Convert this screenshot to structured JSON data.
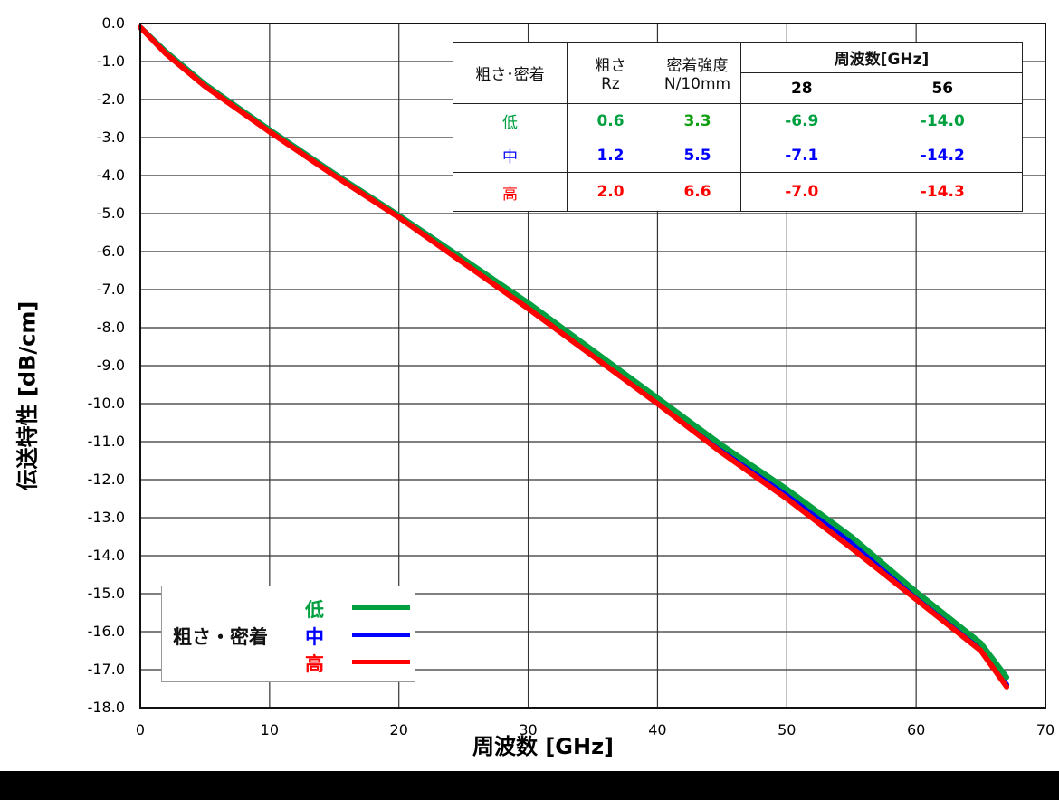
{
  "chart_data": {
    "type": "line",
    "title": "",
    "xlabel": "周波数 [GHz]",
    "ylabel": "伝送特性 [dB/cm]",
    "xlim": [
      0,
      70
    ],
    "ylim": [
      -18.0,
      0.0
    ],
    "x_ticks": [
      "0",
      "10",
      "20",
      "30",
      "40",
      "50",
      "60",
      "70"
    ],
    "y_ticks": [
      "0.0",
      "-1.0",
      "-2.0",
      "-3.0",
      "-4.0",
      "-5.0",
      "-6.0",
      "-7.0",
      "-8.0",
      "-9.0",
      "-10.0",
      "-11.0",
      "-12.0",
      "-13.0",
      "-14.0",
      "-15.0",
      "-16.0",
      "-17.0",
      "-18.0"
    ],
    "grid": true,
    "legend_position": "lower-left",
    "x": [
      0,
      2,
      5,
      10,
      15,
      20,
      25,
      30,
      35,
      40,
      45,
      50,
      55,
      60,
      65,
      67
    ],
    "series": [
      {
        "name": "低",
        "color": "#00A040",
        "values": [
          -0.1,
          -0.75,
          -1.6,
          -2.8,
          -3.95,
          -5.05,
          -6.2,
          -7.35,
          -8.6,
          -9.85,
          -11.1,
          -12.25,
          -13.5,
          -14.95,
          -16.3,
          -17.2
        ]
      },
      {
        "name": "中",
        "color": "#0000FF",
        "values": [
          -0.1,
          -0.75,
          -1.6,
          -2.8,
          -3.95,
          -5.05,
          -6.2,
          -7.4,
          -8.65,
          -9.9,
          -11.2,
          -12.4,
          -13.65,
          -15.1,
          -16.45,
          -17.4
        ]
      },
      {
        "name": "高",
        "color": "#FF0000",
        "values": [
          -0.1,
          -0.8,
          -1.65,
          -2.85,
          -4.0,
          -5.1,
          -6.3,
          -7.5,
          -8.75,
          -10.0,
          -11.3,
          -12.5,
          -13.8,
          -15.15,
          -16.5,
          -17.45
        ]
      }
    ],
    "table": {
      "headers": [
        "粗さ･密着",
        "粗さ Rz",
        "密着強度 N/10mm",
        "周波数[GHz]"
      ],
      "freq_subheaders": [
        "28",
        "56"
      ],
      "rows": [
        {
          "level": "低",
          "rz": "0.6",
          "adhesion": "3.3",
          "f28": "-6.9",
          "f56": "-14.0",
          "color": "#00A040"
        },
        {
          "level": "中",
          "rz": "1.2",
          "adhesion": "5.5",
          "f28": "-7.1",
          "f56": "-14.2",
          "color": "#0000FF"
        },
        {
          "level": "高",
          "rz": "2.0",
          "adhesion": "6.6",
          "f28": "-7.0",
          "f56": "-14.3",
          "color": "#FF0000"
        }
      ]
    }
  },
  "table_labels": {
    "col1": "粗さ･密着",
    "col2_line1": "粗さ",
    "col2_line2": "Rz",
    "col3_line1": "密着強度",
    "col3_line2": "N/10mm",
    "freq": "周波数[GHz]",
    "f28": "28",
    "f56": "56"
  },
  "legend": {
    "title": "粗さ・密着",
    "items": [
      {
        "label": "低",
        "color": "#00A040"
      },
      {
        "label": "中",
        "color": "#0000FF"
      },
      {
        "label": "高",
        "color": "#FF0000"
      }
    ]
  }
}
